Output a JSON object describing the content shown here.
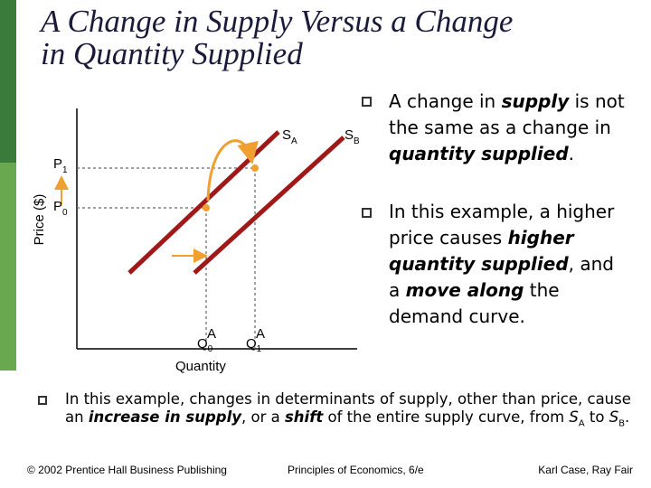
{
  "title": [
    "A Change in Supply Versus a Change",
    "in Quantity Supplied"
  ],
  "diagram": {
    "y_axis_label": "Price ($)",
    "x_axis_label": "Quantity",
    "curves": [
      {
        "letter": "S",
        "subscript": "A"
      },
      {
        "letter": "S",
        "subscript": "B"
      }
    ],
    "prices": [
      {
        "letter": "P",
        "subscript": "1"
      },
      {
        "letter": "P",
        "subscript": "0"
      }
    ],
    "quantities": [
      {
        "letter": "Q",
        "subscript": "0",
        "superscript": "A"
      },
      {
        "letter": "Q",
        "subscript": "1",
        "superscript": "A"
      }
    ]
  },
  "bullets": [
    [
      "A change in ",
      "supply",
      " is not the same as a change in ",
      "quantity supplied",
      "."
    ],
    [
      "In this example, a higher price causes ",
      "higher quantity supplied",
      ", and a ",
      "move along",
      " the demand curve."
    ]
  ],
  "bottom_bullet": [
    "In this example, changes in determinants of supply, other than price, cause an ",
    "increase in supply",
    ", or a ",
    "shift",
    " of the entire supply curve, from ",
    "S",
    "A",
    " to ",
    "S",
    "B",
    "."
  ],
  "footer": [
    "© 2002 Prentice Hall Business Publishing",
    "Principles of Economics, 6/e",
    "Karl Case, Ray Fair"
  ]
}
